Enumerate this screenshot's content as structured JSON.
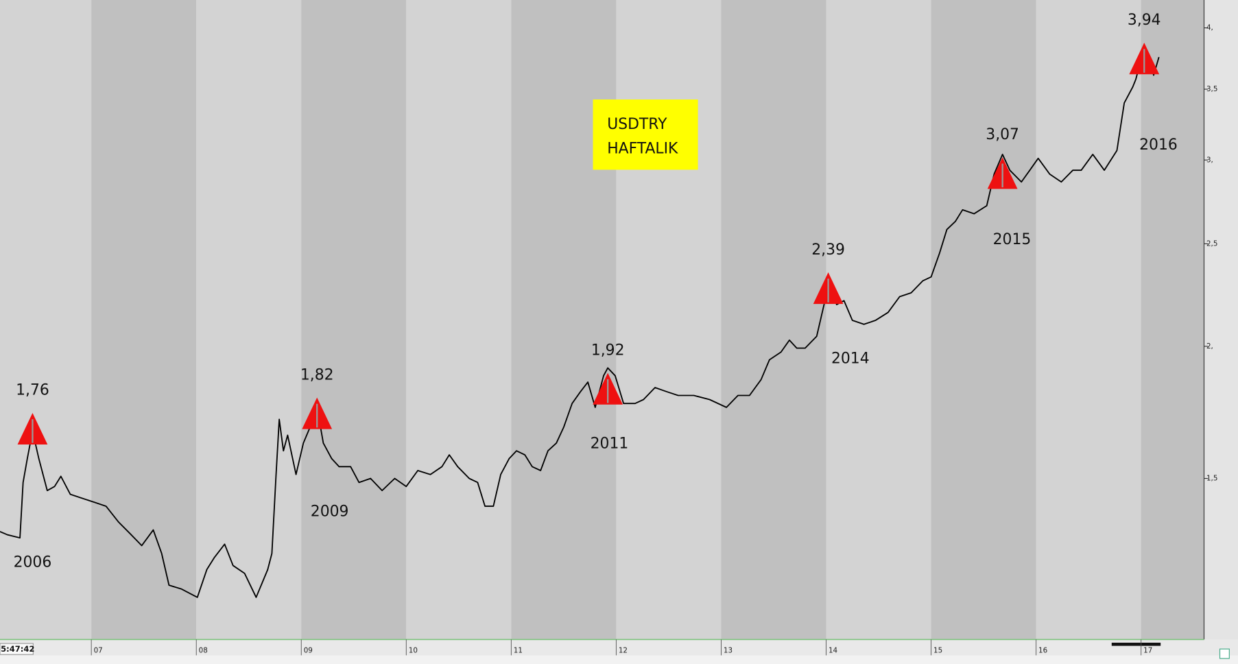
{
  "chart_data": {
    "type": "line",
    "title": "USDTRY",
    "subtitle": "HAFTALIK",
    "clock": "5:47:42",
    "color": "#000000",
    "band_colors": [
      "#d3d3d3",
      "#c0c0c0"
    ],
    "marker_color": "#ee1111",
    "ylog": true,
    "grid": false,
    "xlim": [
      2006.13,
      2017.6
    ],
    "ylim": [
      1.06,
      4.25
    ],
    "xticks": [
      {
        "value": 2007,
        "label": "07"
      },
      {
        "value": 2008,
        "label": "08"
      },
      {
        "value": 2009,
        "label": "09"
      },
      {
        "value": 2010,
        "label": "10"
      },
      {
        "value": 2011,
        "label": "11"
      },
      {
        "value": 2012,
        "label": "12"
      },
      {
        "value": 2013,
        "label": "13"
      },
      {
        "value": 2014,
        "label": "14"
      },
      {
        "value": 2015,
        "label": "15"
      },
      {
        "value": 2016,
        "label": "16"
      },
      {
        "value": 2017,
        "label": "17"
      }
    ],
    "yticks": [
      {
        "value": 1.5,
        "label": "1,5"
      },
      {
        "value": 2,
        "label": "2,"
      },
      {
        "value": 2.5,
        "label": "2,5"
      },
      {
        "value": 3,
        "label": "3,"
      },
      {
        "value": 3.5,
        "label": "3,5"
      },
      {
        "value": 4,
        "label": "4,"
      }
    ],
    "x": [
      2006.13,
      2006.2,
      2006.32,
      2006.35,
      2006.39,
      2006.44,
      2006.5,
      2006.58,
      2006.65,
      2006.71,
      2006.8,
      2006.92,
      2007.03,
      2007.14,
      2007.26,
      2007.37,
      2007.48,
      2007.59,
      2007.67,
      2007.74,
      2007.86,
      2008.01,
      2008.1,
      2008.17,
      2008.27,
      2008.35,
      2008.46,
      2008.57,
      2008.68,
      2008.72,
      2008.76,
      2008.79,
      2008.83,
      2008.87,
      2008.95,
      2009.02,
      2009.1,
      2009.15,
      2009.21,
      2009.29,
      2009.36,
      2009.47,
      2009.55,
      2009.66,
      2009.77,
      2009.89,
      2010.0,
      2010.11,
      2010.23,
      2010.34,
      2010.41,
      2010.49,
      2010.6,
      2010.68,
      2010.75,
      2010.83,
      2010.9,
      2010.98,
      2011.05,
      2011.13,
      2011.2,
      2011.28,
      2011.35,
      2011.43,
      2011.5,
      2011.58,
      2011.66,
      2011.73,
      2011.8,
      2011.88,
      2011.92,
      2011.99,
      2012.07,
      2012.18,
      2012.26,
      2012.37,
      2012.48,
      2012.59,
      2012.74,
      2012.89,
      2013.05,
      2013.16,
      2013.27,
      2013.38,
      2013.46,
      2013.57,
      2013.65,
      2013.72,
      2013.8,
      2013.91,
      2013.98,
      2014.02,
      2014.1,
      2014.17,
      2014.25,
      2014.36,
      2014.47,
      2014.59,
      2014.7,
      2014.81,
      2014.92,
      2015.0,
      2015.08,
      2015.15,
      2015.23,
      2015.3,
      2015.41,
      2015.53,
      2015.6,
      2015.68,
      2015.75,
      2015.86,
      2015.94,
      2016.02,
      2016.13,
      2016.24,
      2016.35,
      2016.43,
      2016.54,
      2016.65,
      2016.77,
      2016.84,
      2016.92,
      2016.95,
      2017.03,
      2017.07,
      2017.12,
      2017.17
    ],
    "values": [
      1.336,
      1.327,
      1.318,
      1.487,
      1.566,
      1.663,
      1.566,
      1.461,
      1.474,
      1.507,
      1.449,
      1.436,
      1.424,
      1.412,
      1.364,
      1.33,
      1.296,
      1.341,
      1.274,
      1.189,
      1.179,
      1.158,
      1.23,
      1.262,
      1.3,
      1.241,
      1.22,
      1.158,
      1.23,
      1.274,
      1.513,
      1.706,
      1.593,
      1.648,
      1.513,
      1.62,
      1.692,
      1.751,
      1.62,
      1.566,
      1.539,
      1.539,
      1.487,
      1.5,
      1.461,
      1.5,
      1.474,
      1.526,
      1.513,
      1.539,
      1.579,
      1.539,
      1.5,
      1.487,
      1.412,
      1.412,
      1.513,
      1.566,
      1.593,
      1.579,
      1.539,
      1.526,
      1.593,
      1.62,
      1.677,
      1.766,
      1.812,
      1.85,
      1.751,
      1.876,
      1.908,
      1.876,
      1.766,
      1.766,
      1.781,
      1.828,
      1.812,
      1.797,
      1.797,
      1.781,
      1.751,
      1.797,
      1.797,
      1.86,
      1.942,
      1.975,
      2.027,
      1.992,
      1.992,
      2.044,
      2.19,
      2.318,
      2.19,
      2.209,
      2.116,
      2.098,
      2.116,
      2.153,
      2.228,
      2.247,
      2.306,
      2.326,
      2.449,
      2.579,
      2.624,
      2.692,
      2.669,
      2.716,
      2.909,
      3.037,
      2.934,
      2.86,
      2.934,
      3.011,
      2.909,
      2.86,
      2.934,
      2.934,
      3.037,
      2.934,
      3.063,
      3.397,
      3.516,
      3.576,
      3.832,
      3.779,
      3.608,
      3.753
    ],
    "peaks": [
      {
        "x": 2006.44,
        "value": 1.76,
        "label": "1,76",
        "year": "2006"
      },
      {
        "x": 2009.15,
        "value": 1.82,
        "label": "1,82",
        "year": "2009"
      },
      {
        "x": 2011.92,
        "value": 1.92,
        "label": "1,92",
        "year": "2011"
      },
      {
        "x": 2014.02,
        "value": 2.39,
        "label": "2,39",
        "year": "2014"
      },
      {
        "x": 2015.68,
        "value": 3.07,
        "label": "3,07",
        "year": "2015"
      },
      {
        "x": 2017.03,
        "value": 3.94,
        "label": "3,94",
        "year": "2016"
      }
    ]
  }
}
